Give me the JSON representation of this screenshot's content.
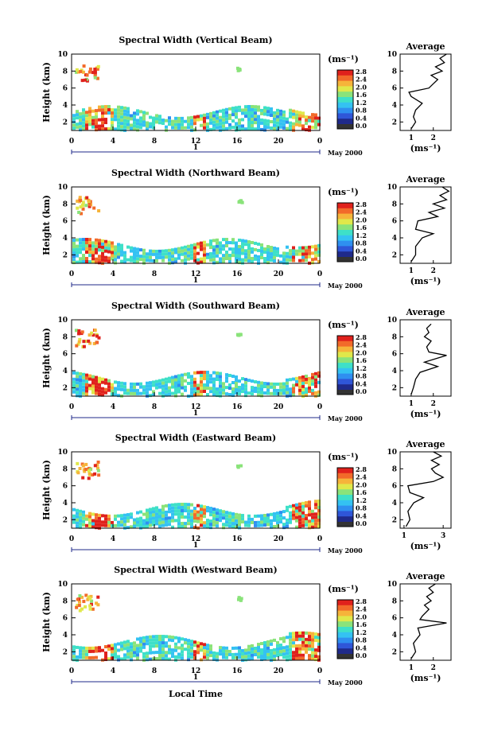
{
  "figure": {
    "panels": [
      {
        "title": "Spectral Width (Vertical Beam)",
        "avg_xticks": [
          "1",
          "2"
        ],
        "avg_xrange": [
          0.5,
          2.8
        ]
      },
      {
        "title": "Spectral Width (Northward Beam)",
        "avg_xticks": [
          "1",
          "2"
        ],
        "avg_xrange": [
          0.5,
          2.8
        ]
      },
      {
        "title": "Spectral Width (Southward Beam)",
        "avg_xticks": [
          "1",
          "2"
        ],
        "avg_xrange": [
          0.5,
          2.8
        ]
      },
      {
        "title": "Spectral Width (Eastward Beam)",
        "avg_xticks": [
          "1",
          "3"
        ],
        "avg_xrange": [
          0.8,
          3.4
        ]
      },
      {
        "title": "Spectral Width (Westward Beam)",
        "avg_xticks": [
          "1",
          "2"
        ],
        "avg_xrange": [
          0.5,
          2.8
        ]
      }
    ],
    "ylabel": "Height (km)",
    "yticks": [
      "2",
      "4",
      "6",
      "8",
      "10"
    ],
    "xticks": [
      "0",
      "4",
      "8",
      "12",
      "16",
      "20",
      "0"
    ],
    "day_label": "1",
    "month_label": "May 2000",
    "colorbar_unit": "(ms⁻¹)",
    "colorbar_ticks": [
      "2.8",
      "2.4",
      "2.0",
      "1.6",
      "1.2",
      "0.8",
      "0.4",
      "0.0"
    ],
    "average_title": "Average",
    "average_xlabel": "(ms⁻¹)",
    "xlabel": "Local Time",
    "colors": {
      "scale": [
        "#1f2a8a",
        "#2f56d8",
        "#2f8ff0",
        "#34c2f2",
        "#3ee0c8",
        "#8ae37a",
        "#e0e84a",
        "#f6b43a",
        "#f26a2a",
        "#e0211c"
      ]
    }
  },
  "chart_data": [
    {
      "type": "heatmap",
      "title": "Spectral Width (Vertical Beam)",
      "xlabel": "",
      "ylabel": "Height (km)",
      "x_unit": "Local Time (h)",
      "xlim": [
        0,
        24
      ],
      "ylim": [
        1,
        10
      ],
      "zlim": [
        0.0,
        2.8
      ],
      "z_unit": "ms-1",
      "profile": {
        "title": "Average",
        "height_km": [
          1.2,
          2,
          2.6,
          3.4,
          4.2,
          5.0,
          5.5,
          6.0,
          6.5,
          7.0,
          7.5,
          8.0,
          8.5,
          9.0,
          9.5,
          10
        ],
        "width_ms": [
          1.0,
          1.2,
          1.1,
          1.2,
          1.5,
          1.0,
          0.9,
          1.8,
          2.0,
          2.2,
          1.9,
          2.4,
          2.1,
          2.5,
          2.3,
          2.6
        ]
      }
    },
    {
      "type": "heatmap",
      "title": "Spectral Width (Northward Beam)",
      "xlabel": "",
      "ylabel": "Height (km)",
      "x_unit": "Local Time (h)",
      "xlim": [
        0,
        24
      ],
      "ylim": [
        1,
        10
      ],
      "zlim": [
        0.0,
        2.8
      ],
      "z_unit": "ms-1",
      "profile": {
        "title": "Average",
        "height_km": [
          1.2,
          2,
          3,
          4,
          4.5,
          5,
          6,
          6.5,
          7,
          7.5,
          8,
          8.5,
          9,
          9.5,
          10
        ],
        "width_ms": [
          1.0,
          1.2,
          1.2,
          1.5,
          2.0,
          1.2,
          1.3,
          2.2,
          1.8,
          2.5,
          2.0,
          2.6,
          2.3,
          2.7,
          2.4
        ]
      }
    },
    {
      "type": "heatmap",
      "title": "Spectral Width (Southward Beam)",
      "xlabel": "",
      "ylabel": "Height (km)",
      "x_unit": "Local Time (h)",
      "xlim": [
        0,
        24
      ],
      "ylim": [
        1,
        10
      ],
      "zlim": [
        0.0,
        2.8
      ],
      "z_unit": "ms-1",
      "profile": {
        "title": "Average",
        "height_km": [
          1.2,
          2,
          3,
          3.8,
          4.5,
          5,
          5.8,
          6.2,
          6.8,
          7.5,
          8,
          8.5,
          9,
          9.5
        ],
        "width_ms": [
          1.0,
          1.1,
          1.2,
          1.4,
          2.2,
          1.6,
          2.6,
          1.8,
          1.7,
          1.9,
          1.6,
          1.8,
          1.7,
          1.9
        ]
      }
    },
    {
      "type": "heatmap",
      "title": "Spectral Width (Eastward Beam)",
      "xlabel": "",
      "ylabel": "Height (km)",
      "x_unit": "Local Time (h)",
      "xlim": [
        0,
        24
      ],
      "ylim": [
        1,
        10
      ],
      "zlim": [
        0.0,
        2.8
      ],
      "z_unit": "ms-1",
      "profile": {
        "title": "Average",
        "height_km": [
          1.2,
          2,
          3,
          4,
          4.6,
          5.2,
          6,
          6.5,
          7,
          7.5,
          8,
          8.5,
          9,
          9.5,
          10
        ],
        "width_ms": [
          1.1,
          1.3,
          1.2,
          1.5,
          2.0,
          1.3,
          1.2,
          2.5,
          3.0,
          2.6,
          2.4,
          2.8,
          2.4,
          2.9,
          2.5
        ]
      }
    },
    {
      "type": "heatmap",
      "title": "Spectral Width (Westward Beam)",
      "xlabel": "",
      "ylabel": "Height (km)",
      "x_unit": "Local Time (h)",
      "xlim": [
        0,
        24
      ],
      "ylim": [
        1,
        10
      ],
      "zlim": [
        0.0,
        2.8
      ],
      "z_unit": "ms-1",
      "profile": {
        "title": "Average",
        "height_km": [
          1.2,
          2,
          3,
          4,
          4.8,
          5.4,
          5.8,
          6.2,
          7,
          7.5,
          8,
          8.5,
          9,
          9.5,
          10
        ],
        "width_ms": [
          1.0,
          1.2,
          1.1,
          1.4,
          1.3,
          2.6,
          1.4,
          1.5,
          1.8,
          1.6,
          1.9,
          1.7,
          2.0,
          1.8,
          2.1
        ]
      }
    }
  ]
}
